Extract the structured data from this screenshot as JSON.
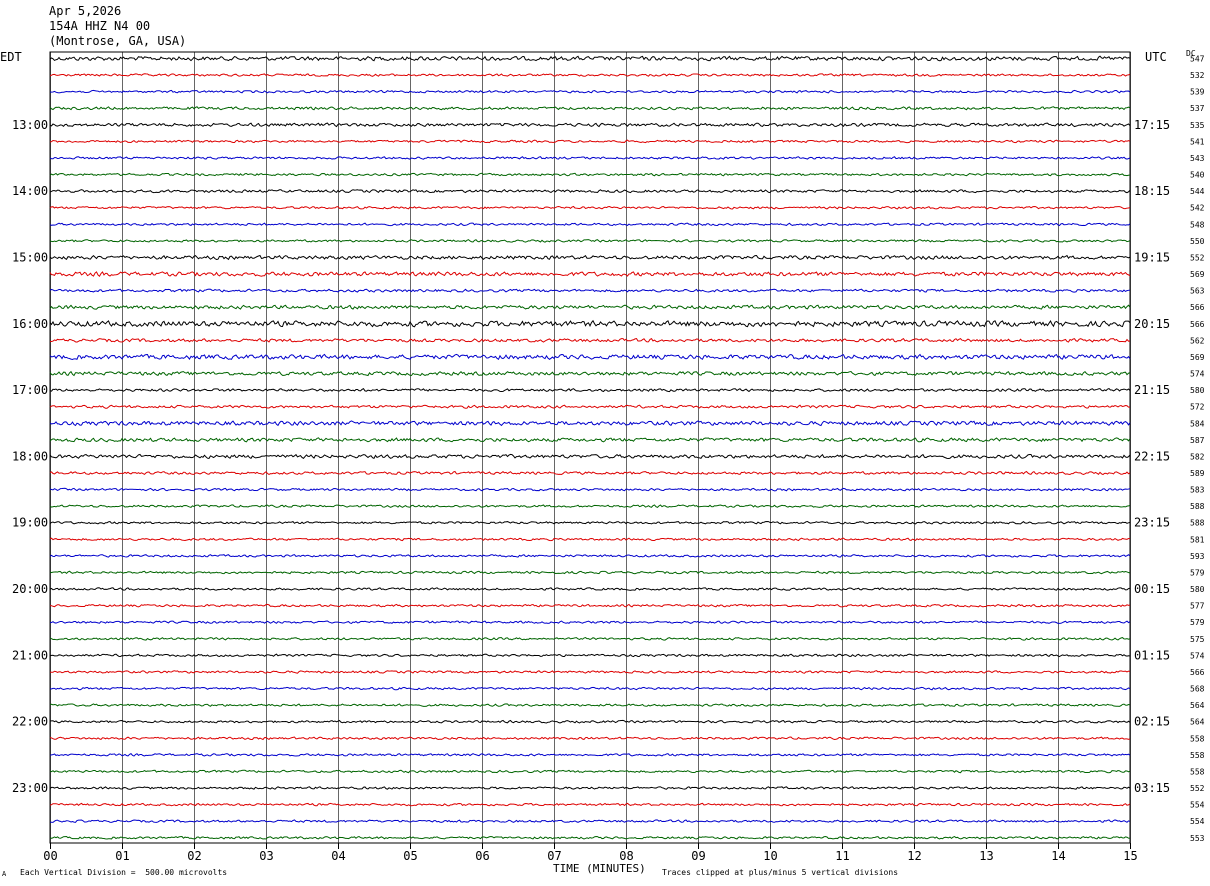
{
  "header": {
    "date": "Apr 5,2026",
    "station": "154A HHZ N4 00",
    "location": "(Montrose, GA, USA)"
  },
  "left_tz": "EDT",
  "right_tz": "UTC",
  "dc_label": "DC",
  "footer": {
    "left_note": "Each Vertical Division =  500.00 microvolts",
    "right_note": "Traces clipped at plus/minus 5 vertical divisions",
    "corner_mark": "A"
  },
  "chart_data": {
    "type": "line",
    "title": "",
    "xlabel": "TIME (MINUTES)",
    "ylabel": "",
    "xlim": [
      0,
      15
    ],
    "x_ticks": [
      "00",
      "01",
      "02",
      "03",
      "04",
      "05",
      "06",
      "07",
      "08",
      "09",
      "10",
      "11",
      "12",
      "13",
      "14",
      "15"
    ],
    "grid": true,
    "trace_colors": [
      "#000000",
      "#dd0000",
      "#0000cc",
      "#006400"
    ],
    "left_hour_labels": [
      {
        "row": 4,
        "text": "13:00"
      },
      {
        "row": 8,
        "text": "14:00"
      },
      {
        "row": 12,
        "text": "15:00"
      },
      {
        "row": 16,
        "text": "16:00"
      },
      {
        "row": 20,
        "text": "17:00"
      },
      {
        "row": 24,
        "text": "18:00"
      },
      {
        "row": 28,
        "text": "19:00"
      },
      {
        "row": 32,
        "text": "20:00"
      },
      {
        "row": 36,
        "text": "21:00"
      },
      {
        "row": 40,
        "text": "22:00"
      },
      {
        "row": 44,
        "text": "23:00"
      }
    ],
    "right_hour_labels": [
      {
        "row": 4,
        "text": "17:15"
      },
      {
        "row": 8,
        "text": "18:15"
      },
      {
        "row": 12,
        "text": "19:15"
      },
      {
        "row": 16,
        "text": "20:15"
      },
      {
        "row": 20,
        "text": "21:15"
      },
      {
        "row": 24,
        "text": "22:15"
      },
      {
        "row": 28,
        "text": "23:15"
      },
      {
        "row": 32,
        "text": "00:15"
      },
      {
        "row": 36,
        "text": "01:15"
      },
      {
        "row": 40,
        "text": "02:15"
      },
      {
        "row": 44,
        "text": "03:15"
      }
    ],
    "dc_offsets": [
      547,
      532,
      539,
      537,
      535,
      541,
      543,
      540,
      544,
      542,
      548,
      550,
      552,
      569,
      563,
      566,
      566,
      562,
      569,
      574,
      580,
      572,
      584,
      587,
      582,
      589,
      583,
      588,
      588,
      581,
      593,
      579,
      580,
      577,
      579,
      575,
      574,
      566,
      568,
      564,
      564,
      558,
      558,
      558,
      552,
      554,
      554,
      553
    ],
    "row_amplitudes": [
      0.9,
      0.5,
      0.5,
      0.6,
      0.7,
      0.5,
      0.5,
      0.5,
      0.6,
      0.5,
      0.5,
      0.5,
      0.8,
      0.9,
      0.6,
      0.8,
      1.2,
      0.7,
      1.0,
      0.8,
      0.6,
      0.6,
      0.9,
      0.8,
      0.8,
      0.6,
      0.5,
      0.5,
      0.5,
      0.5,
      0.5,
      0.5,
      0.5,
      0.5,
      0.5,
      0.5,
      0.5,
      0.5,
      0.5,
      0.5,
      0.5,
      0.5,
      0.5,
      0.5,
      0.5,
      0.5,
      0.5,
      0.5
    ]
  }
}
